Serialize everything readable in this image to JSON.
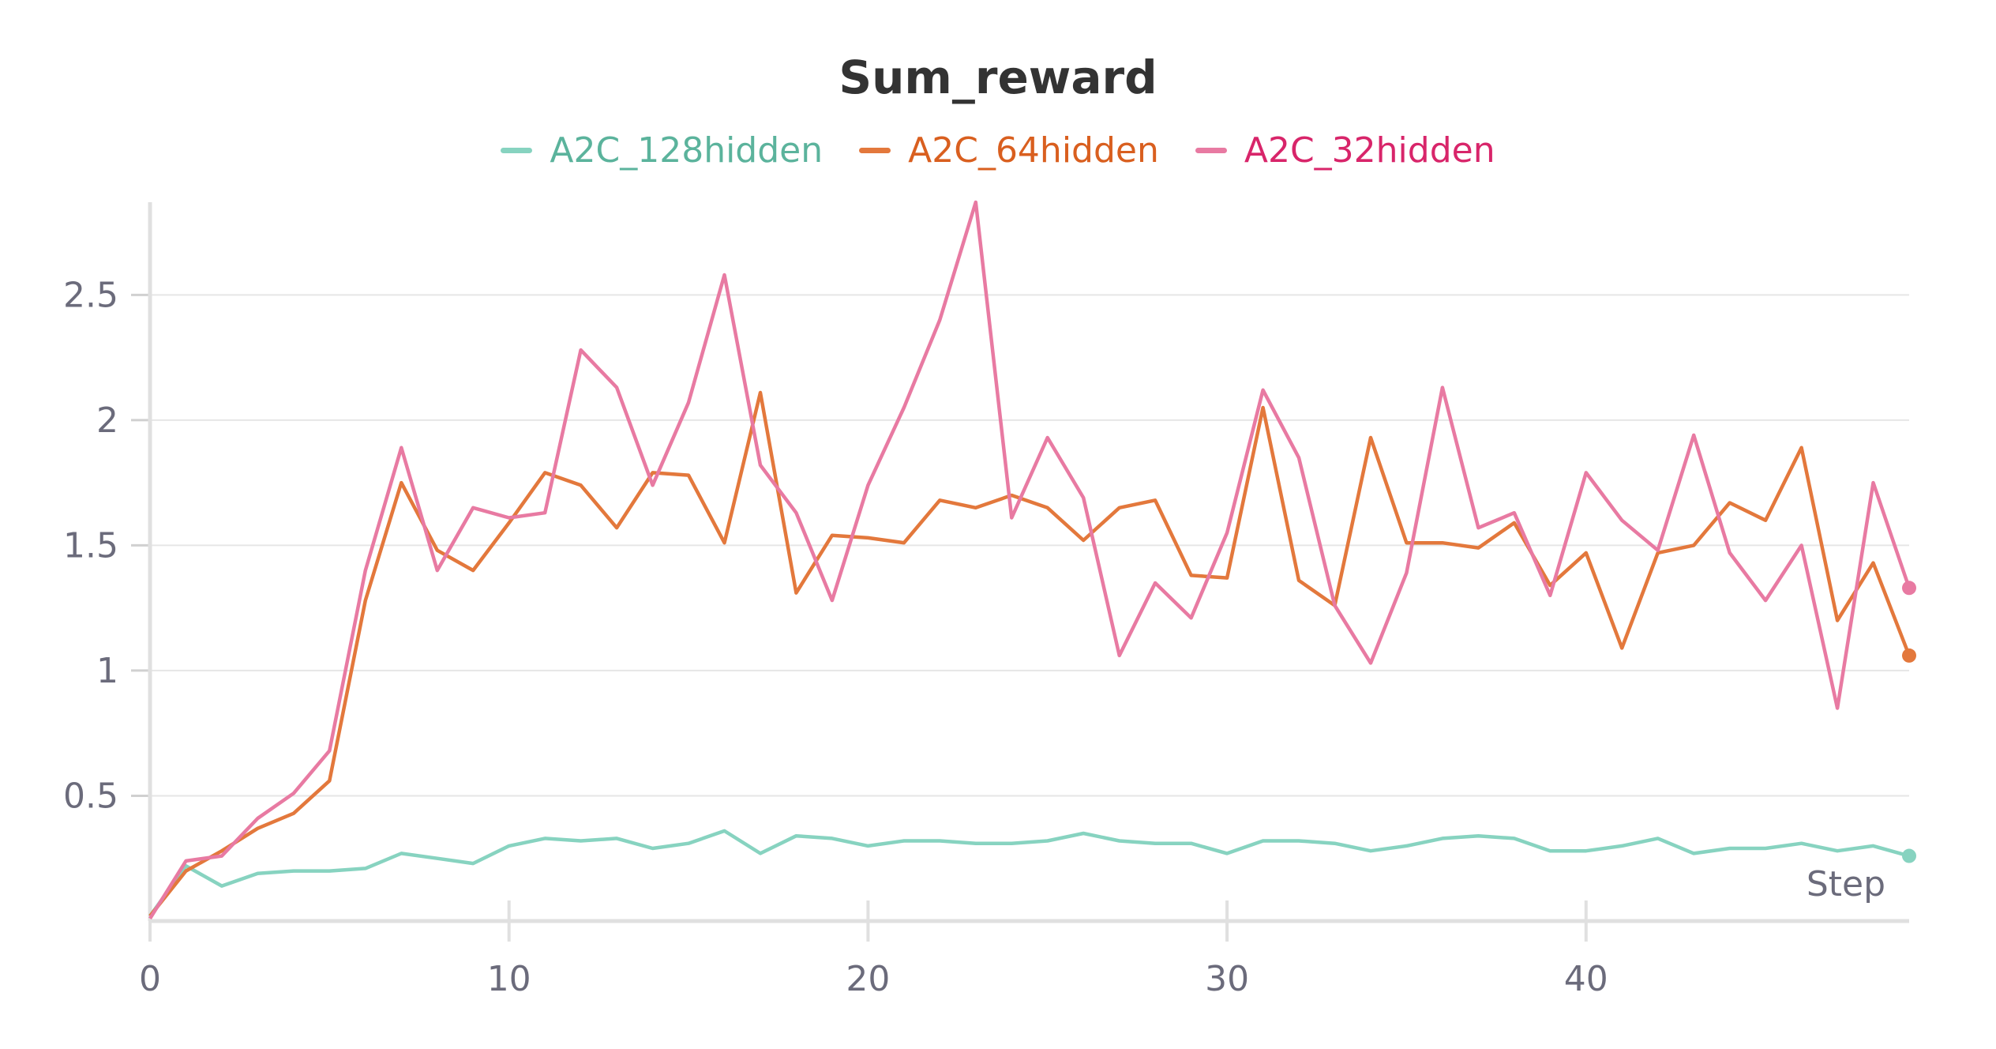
{
  "chart_data": {
    "type": "line",
    "title": "Sum_reward",
    "xlabel": "Step",
    "ylabel": "",
    "xlim": [
      0,
      49
    ],
    "ylim": [
      0,
      2.87
    ],
    "x_ticks": [
      0,
      10,
      20,
      30,
      40
    ],
    "y_ticks": [
      0.5,
      1,
      1.5,
      2,
      2.5
    ],
    "grid": true,
    "legend_position": "top",
    "x": [
      0,
      1,
      2,
      3,
      4,
      5,
      6,
      7,
      8,
      9,
      10,
      11,
      12,
      13,
      14,
      15,
      16,
      17,
      18,
      19,
      20,
      21,
      22,
      23,
      24,
      25,
      26,
      27,
      28,
      29,
      30,
      31,
      32,
      33,
      34,
      35,
      36,
      37,
      38,
      39,
      40,
      41,
      42,
      43,
      44,
      45,
      46,
      47,
      48,
      49
    ],
    "series": [
      {
        "name": "A2C_128hidden",
        "color": "#87d3c0",
        "text_color": "#5bb39c",
        "values": [
          0.02,
          0.22,
          0.14,
          0.19,
          0.2,
          0.2,
          0.21,
          0.27,
          0.25,
          0.23,
          0.3,
          0.33,
          0.32,
          0.33,
          0.29,
          0.31,
          0.36,
          0.27,
          0.34,
          0.33,
          0.3,
          0.32,
          0.32,
          0.31,
          0.31,
          0.32,
          0.35,
          0.32,
          0.31,
          0.31,
          0.27,
          0.32,
          0.32,
          0.31,
          0.28,
          0.3,
          0.33,
          0.34,
          0.33,
          0.28,
          0.28,
          0.3,
          0.33,
          0.27,
          0.29,
          0.29,
          0.31,
          0.28,
          0.3,
          0.26
        ]
      },
      {
        "name": "A2C_64hidden",
        "color": "#e3783c",
        "text_color": "#d95f1f",
        "values": [
          0.02,
          0.2,
          0.28,
          0.37,
          0.43,
          0.56,
          1.28,
          1.75,
          1.48,
          1.4,
          1.59,
          1.79,
          1.74,
          1.57,
          1.79,
          1.78,
          1.51,
          2.11,
          1.31,
          1.54,
          1.53,
          1.51,
          1.68,
          1.65,
          1.7,
          1.65,
          1.52,
          1.65,
          1.68,
          1.38,
          1.37,
          2.05,
          1.36,
          1.26,
          1.93,
          1.51,
          1.51,
          1.49,
          1.59,
          1.34,
          1.47,
          1.09,
          1.47,
          1.5,
          1.67,
          1.6,
          1.89,
          1.2,
          1.43,
          1.06
        ]
      },
      {
        "name": "A2C_32hidden",
        "color": "#e87aa2",
        "text_color": "#d8256a",
        "values": [
          0.01,
          0.24,
          0.26,
          0.41,
          0.51,
          0.68,
          1.4,
          1.89,
          1.4,
          1.65,
          1.61,
          1.63,
          2.28,
          2.13,
          1.74,
          2.07,
          2.58,
          1.82,
          1.63,
          1.28,
          1.74,
          2.05,
          2.4,
          2.87,
          1.61,
          1.93,
          1.69,
          1.06,
          1.35,
          1.21,
          1.55,
          2.12,
          1.85,
          1.26,
          1.03,
          1.39,
          2.13,
          1.57,
          1.63,
          1.3,
          1.79,
          1.6,
          1.48,
          1.94,
          1.47,
          1.28,
          1.5,
          0.85,
          1.75,
          1.33
        ]
      }
    ]
  }
}
